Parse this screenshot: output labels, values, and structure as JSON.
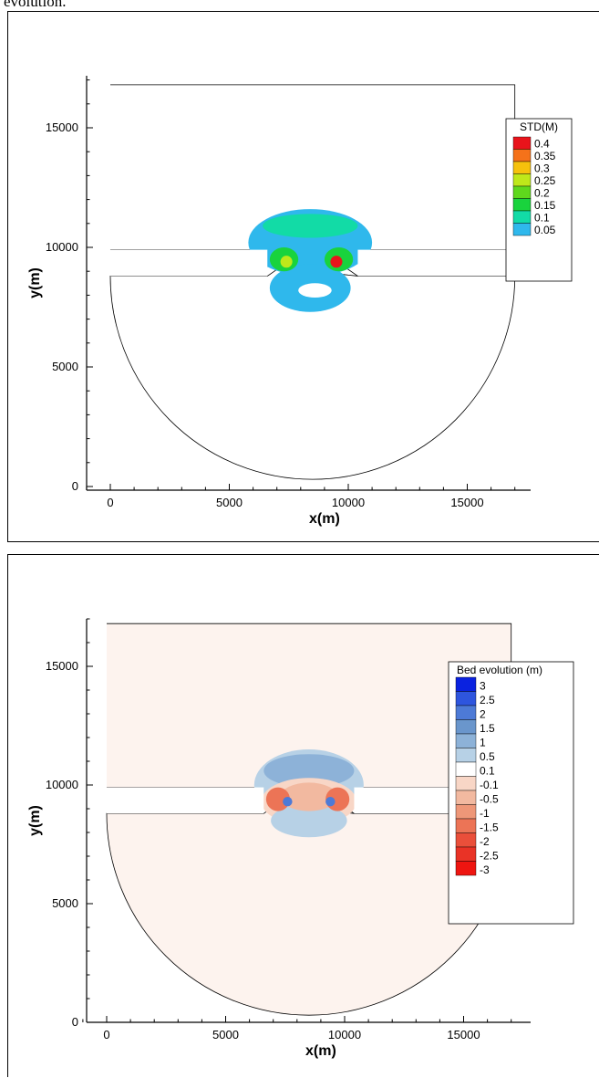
{
  "caption": "evolution.",
  "charts": [
    {
      "type": "contour",
      "xlabel": "x(m)",
      "ylabel": "y(m)",
      "xlim": [
        -1000,
        18000
      ],
      "ylim": [
        0,
        17500
      ],
      "xticks": [
        0,
        5000,
        10000,
        15000
      ],
      "yticks": [
        0,
        5000,
        10000,
        15000
      ],
      "legend": {
        "title": "STD(M)",
        "placement": "right",
        "levels": [
          "0.4",
          "0.35",
          "0.3",
          "0.25",
          "0.2",
          "0.15",
          "0.1",
          "0.05"
        ],
        "colors": [
          "#e8141b",
          "#f5721a",
          "#f6c10c",
          "#bfe81a",
          "#5fd81d",
          "#19d33d",
          "#12dba6",
          "#2fb8ec"
        ]
      },
      "background_color": "#ffffff"
    },
    {
      "type": "contour",
      "xlabel": "x(m)",
      "ylabel": "y(m)",
      "xlim": [
        -1000,
        18000
      ],
      "ylim": [
        0,
        17500
      ],
      "xticks": [
        0,
        5000,
        10000,
        15000
      ],
      "yticks": [
        0,
        5000,
        10000,
        15000
      ],
      "legend": {
        "title": "Bed evolution (m)",
        "placement": "right",
        "levels": [
          "3",
          "2.5",
          "2",
          "1.5",
          "1",
          "0.5",
          "0.1",
          "-0.1",
          "-0.5",
          "-1",
          "-1.5",
          "-2",
          "-2.5",
          "-3"
        ],
        "colors": [
          "#0a22e0",
          "#2e55de",
          "#4d7ad6",
          "#6a96cc",
          "#8db2d8",
          "#b7d1e6",
          "#ffffff",
          "#f8d6c6",
          "#f2b9a0",
          "#ee9778",
          "#ec7456",
          "#ea4f3a",
          "#e93326",
          "#ee1510"
        ]
      },
      "background_color": "#fdf3ee"
    }
  ],
  "chart_data": [
    {
      "type": "heatmap",
      "title": "",
      "xlabel": "x(m)",
      "ylabel": "y(m)",
      "xlim": [
        -1000,
        18000
      ],
      "ylim": [
        0,
        17500
      ],
      "levels": [
        0.05,
        0.1,
        0.15,
        0.2,
        0.25,
        0.3,
        0.35,
        0.4
      ]
    },
    {
      "type": "heatmap",
      "title": "",
      "xlabel": "x(m)",
      "ylabel": "y(m)",
      "xlim": [
        -1000,
        18000
      ],
      "ylim": [
        0,
        17500
      ],
      "levels": [
        3,
        2.5,
        2,
        1.5,
        1,
        0.5,
        0.1,
        -0.1,
        -0.5,
        -1,
        -1.5,
        -2,
        -2.5,
        -3
      ]
    }
  ]
}
